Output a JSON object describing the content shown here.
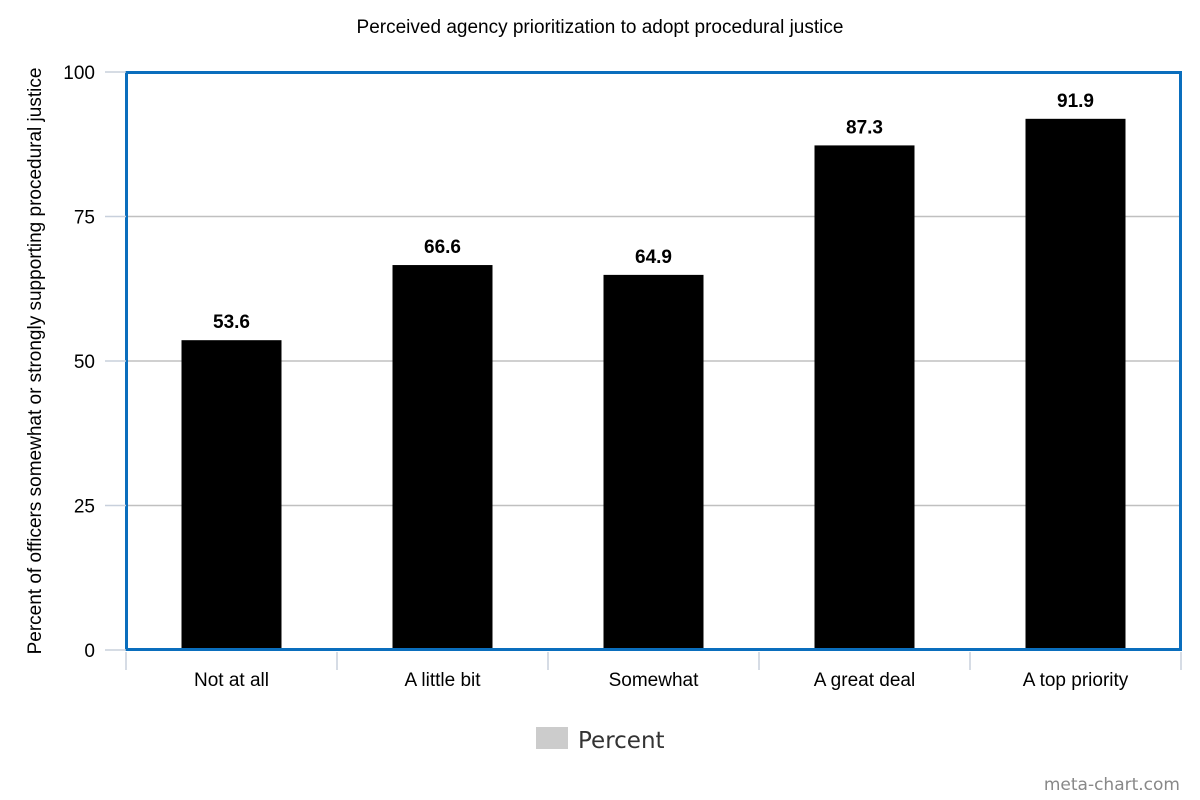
{
  "chart_data": {
    "type": "bar",
    "title": "Perceived agency prioritization to adopt procedural justice",
    "xlabel": "",
    "ylabel": "Percent of officers somewhat or strongly supporting procedural justice",
    "categories": [
      "Not at all",
      "A little bit",
      "Somewhat",
      "A great deal",
      "A top priority"
    ],
    "series": [
      {
        "name": "Percent",
        "values": [
          53.6,
          66.6,
          64.9,
          87.3,
          91.9
        ]
      }
    ],
    "data_labels": [
      "53.6",
      "66.6",
      "64.9",
      "87.3",
      "91.9"
    ],
    "ylim": [
      0,
      100
    ],
    "yticks": [
      0,
      25,
      50,
      75,
      100
    ],
    "grid": true,
    "legend": {
      "position": "bottom-center",
      "entries": [
        "Percent"
      ]
    },
    "colors": {
      "bar": "#000000",
      "frame": "#0a6ebd",
      "grid": "#c0c0c0",
      "legend_swatch": "#cccccc"
    }
  },
  "credit": "meta-chart.com"
}
